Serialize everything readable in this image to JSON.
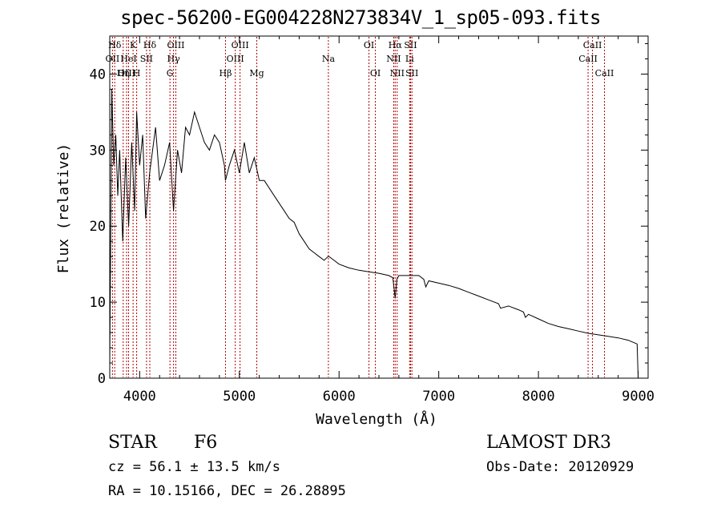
{
  "chart_data": {
    "type": "line",
    "title": "spec-56200-EG004228N273834V_1_sp05-093.fits",
    "xlabel": "Wavelength (Å)",
    "ylabel": "Flux (relative)",
    "xlim": [
      3700,
      9100
    ],
    "ylim": [
      0,
      45
    ],
    "xticks": [
      4000,
      5000,
      6000,
      7000,
      8000,
      9000
    ],
    "yticks": [
      0,
      10,
      20,
      30,
      40
    ],
    "grid": false,
    "series": [
      {
        "name": "flux",
        "x": [
          3700,
          3720,
          3740,
          3760,
          3780,
          3800,
          3830,
          3860,
          3890,
          3920,
          3950,
          3970,
          4000,
          4030,
          4060,
          4100,
          4130,
          4160,
          4200,
          4250,
          4300,
          4340,
          4380,
          4420,
          4460,
          4500,
          4550,
          4600,
          4650,
          4700,
          4750,
          4800,
          4850,
          4860,
          4900,
          4950,
          5000,
          5050,
          5100,
          5150,
          5200,
          5250,
          5300,
          5350,
          5400,
          5450,
          5500,
          5550,
          5600,
          5650,
          5700,
          5750,
          5800,
          5850,
          5890,
          5900,
          5950,
          6000,
          6100,
          6200,
          6300,
          6400,
          6500,
          6540,
          6563,
          6580,
          6600,
          6700,
          6800,
          6850,
          6870,
          6900,
          7000,
          7100,
          7200,
          7300,
          7400,
          7500,
          7600,
          7620,
          7700,
          7800,
          7850,
          7870,
          7900,
          8000,
          8100,
          8200,
          8300,
          8400,
          8500,
          8600,
          8700,
          8800,
          8900,
          8990,
          9000
        ],
        "y": [
          2,
          38,
          28,
          32,
          24,
          30,
          18,
          29,
          20,
          31,
          22,
          35,
          28,
          32,
          21,
          27,
          30,
          33,
          26,
          28,
          31,
          22,
          30,
          27,
          33,
          32,
          35,
          33,
          31,
          30,
          32,
          31,
          28,
          26,
          28,
          30,
          27,
          31,
          27,
          29,
          26,
          26,
          25,
          24,
          23,
          22,
          21,
          20.5,
          19,
          18,
          17,
          16.5,
          16,
          15.5,
          16,
          16,
          15.5,
          15,
          14.5,
          14.2,
          14,
          13.8,
          13.5,
          13.2,
          10.5,
          13.0,
          13.5,
          13.5,
          13.5,
          13.0,
          12.0,
          12.8,
          12.5,
          12.2,
          11.8,
          11.3,
          10.8,
          10.3,
          9.8,
          9.2,
          9.5,
          9.0,
          8.7,
          8.0,
          8.4,
          7.8,
          7.2,
          6.8,
          6.5,
          6.2,
          5.9,
          5.7,
          5.5,
          5.3,
          5.0,
          4.5,
          0
        ]
      }
    ],
    "lines": [
      {
        "label": "Hδ",
        "x": 3750,
        "row": 0
      },
      {
        "label": "K",
        "x": 3934,
        "row": 0
      },
      {
        "label": "Hδ",
        "x": 4102,
        "row": 0
      },
      {
        "label": "OIII",
        "x": 4363,
        "row": 0
      },
      {
        "label": "OIII",
        "x": 5007,
        "row": 0
      },
      {
        "label": "OI",
        "x": 6300,
        "row": 0
      },
      {
        "label": "Hα",
        "x": 6563,
        "row": 0
      },
      {
        "label": "SII",
        "x": 6717,
        "row": 0
      },
      {
        "label": "CaII",
        "x": 8542,
        "row": 0
      },
      {
        "label": "OII",
        "x": 3727,
        "row": 1
      },
      {
        "label": "HeI",
        "x": 3889,
        "row": 1
      },
      {
        "label": "SII",
        "x": 4069,
        "row": 1
      },
      {
        "label": "Hγ",
        "x": 4340,
        "row": 1
      },
      {
        "label": "OIII",
        "x": 4959,
        "row": 1
      },
      {
        "label": "Na",
        "x": 5893,
        "row": 1
      },
      {
        "label": "NII",
        "x": 6548,
        "row": 1
      },
      {
        "label": "Li",
        "x": 6708,
        "row": 1
      },
      {
        "label": "CaII",
        "x": 8498,
        "row": 1
      },
      {
        "label": "OIII",
        "x": 3869,
        "row": 2
      },
      {
        "label": "Hη",
        "x": 3835,
        "row": 2
      },
      {
        "label": "H",
        "x": 3970,
        "row": 2
      },
      {
        "label": "G",
        "x": 4304,
        "row": 2
      },
      {
        "label": "Hβ",
        "x": 4861,
        "row": 2
      },
      {
        "label": "Mg",
        "x": 5175,
        "row": 2
      },
      {
        "label": "OI",
        "x": 6364,
        "row": 2
      },
      {
        "label": "NII",
        "x": 6583,
        "row": 2
      },
      {
        "label": "SII",
        "x": 6731,
        "row": 2
      },
      {
        "label": "CaII",
        "x": 8662,
        "row": 2
      }
    ]
  },
  "info": {
    "class": "STAR",
    "subclass": "F6",
    "survey": "LAMOST DR3",
    "cz": "cz = 56.1 ± 13.5 km/s",
    "obs_date": "Obs-Date: 20120929",
    "radec": "RA =  10.15166, DEC =  26.28895"
  }
}
